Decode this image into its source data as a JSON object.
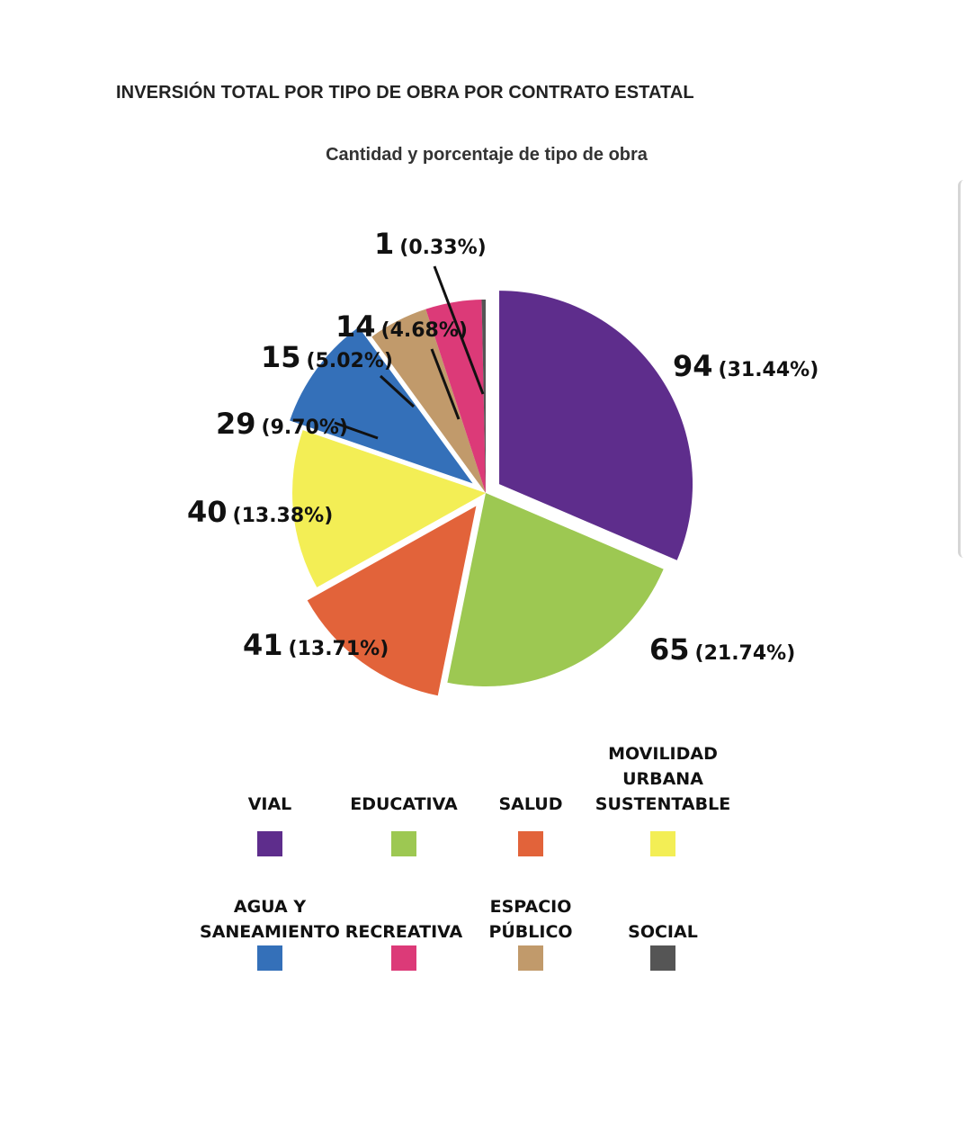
{
  "page": {
    "title": "INVERSIÓN TOTAL POR TIPO DE OBRA POR CONTRATO ESTATAL"
  },
  "chart_data": {
    "type": "pie",
    "title": "Cantidad y porcentaje de tipo de obra",
    "slices": [
      {
        "name": "VIAL",
        "legend_lines": [
          "VIAL"
        ],
        "value": 94,
        "percent": "31.44%",
        "color": "#5e2d8c",
        "exploded": true
      },
      {
        "name": "EDUCATIVA",
        "legend_lines": [
          "EDUCATIVA"
        ],
        "value": 65,
        "percent": "21.74%",
        "color": "#9dc852",
        "exploded": false
      },
      {
        "name": "SALUD",
        "legend_lines": [
          "SALUD"
        ],
        "value": 41,
        "percent": "13.71%",
        "color": "#e2633a",
        "exploded": true
      },
      {
        "name": "MOVILIDAD URBANA SUSTENTABLE",
        "legend_lines": [
          "MOVILIDAD",
          "URBANA",
          "SUSTENTABLE"
        ],
        "value": 40,
        "percent": "13.38%",
        "color": "#f3ee55",
        "exploded": false
      },
      {
        "name": "AGUA Y SANEAMIENTO",
        "legend_lines": [
          "AGUA Y",
          "SANEAMIENTO"
        ],
        "value": 29,
        "percent": "9.70%",
        "color": "#3470b9",
        "exploded": true
      },
      {
        "name": "RECREATIVA",
        "legend_lines": [
          "RECREATIVA"
        ],
        "value": 14,
        "percent": "4.68%",
        "color": "#dc3a78",
        "exploded": false
      },
      {
        "name": "ESPACIO PÚBLICO",
        "legend_lines": [
          "ESPACIO",
          "PÚBLICO"
        ],
        "value": 15,
        "percent": "5.02%",
        "color": "#c19a6b",
        "exploded": false
      },
      {
        "name": "SOCIAL",
        "legend_lines": [
          "SOCIAL"
        ],
        "value": 1,
        "percent": "0.33%",
        "color": "#555555",
        "exploded": false
      }
    ],
    "slice_order": [
      "VIAL",
      "EDUCATIVA",
      "SALUD",
      "MOVILIDAD URBANA SUSTENTABLE",
      "AGUA Y SANEAMIENTO",
      "ESPACIO PÚBLICO",
      "RECREATIVA",
      "SOCIAL"
    ],
    "legend_placement": "bottom"
  }
}
